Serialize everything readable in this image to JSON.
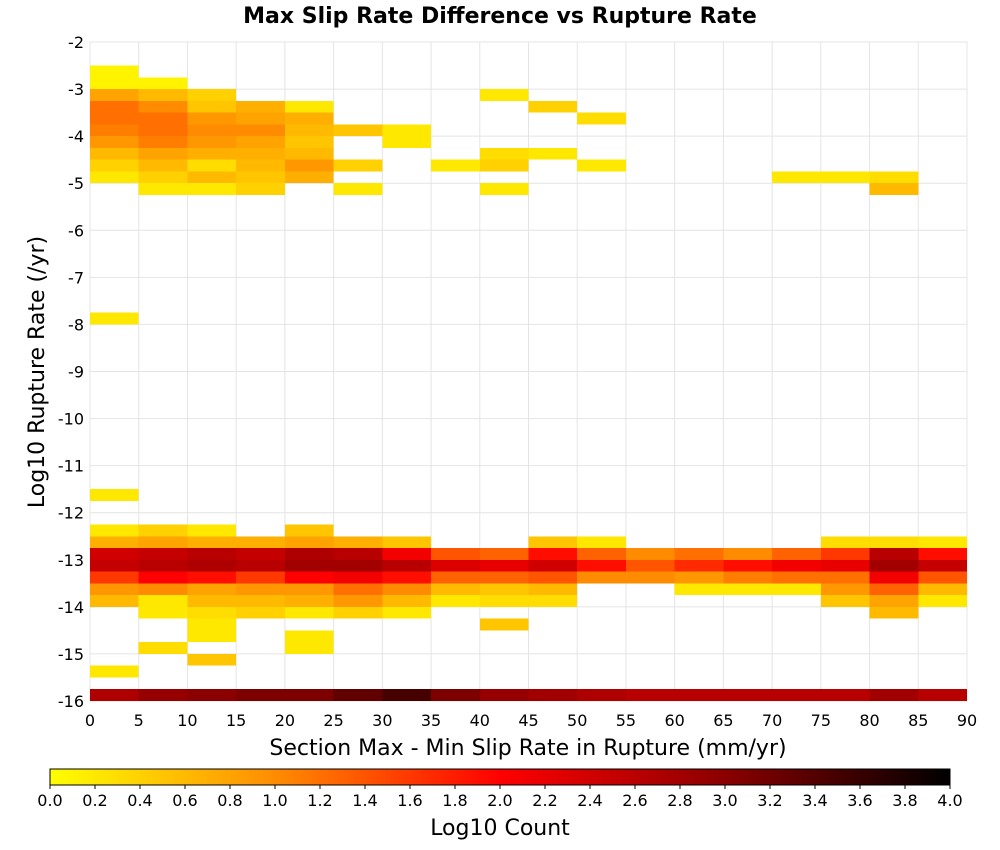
{
  "chart_data": {
    "type": "heatmap",
    "title": "Max Slip Rate Difference vs Rupture Rate",
    "xlabel": "Section Max - Min Slip Rate in Rupture (mm/yr)",
    "ylabel": "Log10 Rupture Rate (/yr)",
    "xlim": [
      0,
      90
    ],
    "ylim": [
      -16,
      -2
    ],
    "x_ticks": [
      "0",
      "5",
      "10",
      "15",
      "20",
      "25",
      "30",
      "35",
      "40",
      "45",
      "50",
      "55",
      "60",
      "65",
      "70",
      "75",
      "80",
      "85",
      "90"
    ],
    "y_ticks": [
      "-2",
      "-3",
      "-4",
      "-5",
      "-6",
      "-7",
      "-8",
      "-9",
      "-10",
      "-11",
      "-12",
      "-13",
      "-14",
      "-15",
      "-16"
    ],
    "grid": true,
    "x_bin_width": 5,
    "y_bin_height": 0.25,
    "colorbar": {
      "label": "Log10 Count",
      "min": 0.0,
      "max": 4.0,
      "ticks": [
        "0.0",
        "0.2",
        "0.4",
        "0.6",
        "0.8",
        "1.0",
        "1.2",
        "1.4",
        "1.6",
        "1.8",
        "2.0",
        "2.2",
        "2.4",
        "2.6",
        "2.8",
        "3.0",
        "3.2",
        "3.4",
        "3.6",
        "3.8",
        "4.0"
      ],
      "colors": [
        "#ffff00",
        "#ff8c00",
        "#ff0000",
        "#8b0000",
        "#000000"
      ]
    },
    "cells": [
      {
        "x": 0,
        "y": -2.625,
        "v": 0.1
      },
      {
        "x": 0,
        "y": -2.875,
        "v": 0.1
      },
      {
        "x": 0,
        "y": -3.125,
        "v": 0.8
      },
      {
        "x": 0,
        "y": -3.375,
        "v": 1.2
      },
      {
        "x": 0,
        "y": -3.625,
        "v": 1.2
      },
      {
        "x": 0,
        "y": -3.875,
        "v": 1.1
      },
      {
        "x": 0,
        "y": -4.125,
        "v": 0.9
      },
      {
        "x": 0,
        "y": -4.375,
        "v": 0.6
      },
      {
        "x": 0,
        "y": -4.625,
        "v": 0.4
      },
      {
        "x": 0,
        "y": -4.875,
        "v": 0.2
      },
      {
        "x": 5,
        "y": -2.875,
        "v": 0.1
      },
      {
        "x": 5,
        "y": -3.125,
        "v": 0.6
      },
      {
        "x": 5,
        "y": -3.375,
        "v": 1.0
      },
      {
        "x": 5,
        "y": -3.625,
        "v": 1.2
      },
      {
        "x": 5,
        "y": -3.875,
        "v": 1.2
      },
      {
        "x": 5,
        "y": -4.125,
        "v": 1.1
      },
      {
        "x": 5,
        "y": -4.375,
        "v": 0.8
      },
      {
        "x": 5,
        "y": -4.625,
        "v": 0.6
      },
      {
        "x": 5,
        "y": -4.875,
        "v": 0.4
      },
      {
        "x": 5,
        "y": -5.125,
        "v": 0.2
      },
      {
        "x": 10,
        "y": -3.125,
        "v": 0.4
      },
      {
        "x": 10,
        "y": -3.375,
        "v": 0.5
      },
      {
        "x": 10,
        "y": -3.625,
        "v": 0.9
      },
      {
        "x": 10,
        "y": -3.875,
        "v": 1.0
      },
      {
        "x": 10,
        "y": -4.125,
        "v": 0.9
      },
      {
        "x": 10,
        "y": -4.375,
        "v": 0.7
      },
      {
        "x": 10,
        "y": -4.625,
        "v": 0.3
      },
      {
        "x": 10,
        "y": -4.875,
        "v": 0.6
      },
      {
        "x": 10,
        "y": -5.125,
        "v": 0.2
      },
      {
        "x": 15,
        "y": -3.375,
        "v": 0.7
      },
      {
        "x": 15,
        "y": -3.625,
        "v": 0.8
      },
      {
        "x": 15,
        "y": -3.875,
        "v": 1.0
      },
      {
        "x": 15,
        "y": -4.125,
        "v": 0.8
      },
      {
        "x": 15,
        "y": -4.375,
        "v": 0.7
      },
      {
        "x": 15,
        "y": -4.625,
        "v": 0.6
      },
      {
        "x": 15,
        "y": -4.875,
        "v": 0.5
      },
      {
        "x": 15,
        "y": -5.125,
        "v": 0.4
      },
      {
        "x": 20,
        "y": -3.375,
        "v": 0.2
      },
      {
        "x": 20,
        "y": -3.625,
        "v": 0.7
      },
      {
        "x": 20,
        "y": -3.875,
        "v": 0.6
      },
      {
        "x": 20,
        "y": -4.125,
        "v": 0.5
      },
      {
        "x": 20,
        "y": -4.375,
        "v": 0.6
      },
      {
        "x": 20,
        "y": -4.625,
        "v": 0.9
      },
      {
        "x": 20,
        "y": -4.875,
        "v": 0.7
      },
      {
        "x": 25,
        "y": -3.875,
        "v": 0.5
      },
      {
        "x": 25,
        "y": -4.625,
        "v": 0.4
      },
      {
        "x": 25,
        "y": -5.125,
        "v": 0.2
      },
      {
        "x": 30,
        "y": -3.875,
        "v": 0.2
      },
      {
        "x": 30,
        "y": -4.125,
        "v": 0.2
      },
      {
        "x": 35,
        "y": -4.625,
        "v": 0.2
      },
      {
        "x": 40,
        "y": -3.125,
        "v": 0.2
      },
      {
        "x": 40,
        "y": -4.375,
        "v": 0.3
      },
      {
        "x": 40,
        "y": -4.625,
        "v": 0.4
      },
      {
        "x": 40,
        "y": -5.125,
        "v": 0.2
      },
      {
        "x": 45,
        "y": -3.375,
        "v": 0.4
      },
      {
        "x": 45,
        "y": -4.375,
        "v": 0.2
      },
      {
        "x": 50,
        "y": -3.625,
        "v": 0.3
      },
      {
        "x": 50,
        "y": -4.625,
        "v": 0.2
      },
      {
        "x": 70,
        "y": -4.875,
        "v": 0.2
      },
      {
        "x": 75,
        "y": -4.875,
        "v": 0.2
      },
      {
        "x": 80,
        "y": -4.875,
        "v": 0.3
      },
      {
        "x": 80,
        "y": -5.125,
        "v": 0.6
      },
      {
        "x": 0,
        "y": -7.875,
        "v": 0.2
      },
      {
        "x": 0,
        "y": -11.625,
        "v": 0.2
      },
      {
        "x": 0,
        "y": -15.375,
        "v": 0.2
      },
      {
        "x": 0,
        "y": -12.375,
        "v": 0.2
      },
      {
        "x": 0,
        "y": -12.625,
        "v": 0.7
      },
      {
        "x": 0,
        "y": -12.875,
        "v": 2.4
      },
      {
        "x": 0,
        "y": -13.125,
        "v": 2.5
      },
      {
        "x": 0,
        "y": -13.375,
        "v": 1.6
      },
      {
        "x": 0,
        "y": -13.625,
        "v": 0.9
      },
      {
        "x": 0,
        "y": -13.875,
        "v": 0.6
      },
      {
        "x": 5,
        "y": -12.375,
        "v": 0.4
      },
      {
        "x": 5,
        "y": -12.625,
        "v": 0.8
      },
      {
        "x": 5,
        "y": -12.875,
        "v": 2.5
      },
      {
        "x": 5,
        "y": -13.125,
        "v": 2.6
      },
      {
        "x": 5,
        "y": -13.375,
        "v": 2.0
      },
      {
        "x": 5,
        "y": -13.625,
        "v": 1.0
      },
      {
        "x": 5,
        "y": -13.875,
        "v": 0.2
      },
      {
        "x": 5,
        "y": -14.125,
        "v": 0.2
      },
      {
        "x": 5,
        "y": -14.875,
        "v": 0.3
      },
      {
        "x": 10,
        "y": -12.375,
        "v": 0.2
      },
      {
        "x": 10,
        "y": -12.625,
        "v": 0.7
      },
      {
        "x": 10,
        "y": -12.875,
        "v": 2.6
      },
      {
        "x": 10,
        "y": -13.125,
        "v": 2.7
      },
      {
        "x": 10,
        "y": -13.375,
        "v": 1.9
      },
      {
        "x": 10,
        "y": -13.625,
        "v": 0.8
      },
      {
        "x": 10,
        "y": -13.875,
        "v": 0.6
      },
      {
        "x": 10,
        "y": -14.125,
        "v": 0.3
      },
      {
        "x": 10,
        "y": -14.375,
        "v": 0.2
      },
      {
        "x": 10,
        "y": -14.625,
        "v": 0.2
      },
      {
        "x": 10,
        "y": -15.125,
        "v": 0.5
      },
      {
        "x": 15,
        "y": -12.625,
        "v": 0.7
      },
      {
        "x": 15,
        "y": -12.875,
        "v": 2.5
      },
      {
        "x": 15,
        "y": -13.125,
        "v": 2.6
      },
      {
        "x": 15,
        "y": -13.375,
        "v": 1.6
      },
      {
        "x": 15,
        "y": -13.625,
        "v": 0.9
      },
      {
        "x": 15,
        "y": -13.875,
        "v": 0.6
      },
      {
        "x": 15,
        "y": -14.125,
        "v": 0.4
      },
      {
        "x": 20,
        "y": -12.375,
        "v": 0.5
      },
      {
        "x": 20,
        "y": -12.625,
        "v": 0.8
      },
      {
        "x": 20,
        "y": -12.875,
        "v": 2.7
      },
      {
        "x": 20,
        "y": -13.125,
        "v": 2.8
      },
      {
        "x": 20,
        "y": -13.375,
        "v": 2.0
      },
      {
        "x": 20,
        "y": -13.625,
        "v": 0.9
      },
      {
        "x": 20,
        "y": -13.875,
        "v": 0.7
      },
      {
        "x": 20,
        "y": -14.125,
        "v": 0.2
      },
      {
        "x": 20,
        "y": -14.625,
        "v": 0.2
      },
      {
        "x": 20,
        "y": -14.875,
        "v": 0.2
      },
      {
        "x": 25,
        "y": -12.625,
        "v": 0.7
      },
      {
        "x": 25,
        "y": -12.875,
        "v": 2.6
      },
      {
        "x": 25,
        "y": -13.125,
        "v": 2.8
      },
      {
        "x": 25,
        "y": -13.375,
        "v": 2.1
      },
      {
        "x": 25,
        "y": -13.625,
        "v": 1.2
      },
      {
        "x": 25,
        "y": -13.875,
        "v": 0.9
      },
      {
        "x": 25,
        "y": -14.125,
        "v": 0.4
      },
      {
        "x": 30,
        "y": -12.625,
        "v": 0.5
      },
      {
        "x": 30,
        "y": -12.875,
        "v": 2.1
      },
      {
        "x": 30,
        "y": -13.125,
        "v": 2.6
      },
      {
        "x": 30,
        "y": -13.375,
        "v": 1.9
      },
      {
        "x": 30,
        "y": -13.625,
        "v": 1.0
      },
      {
        "x": 30,
        "y": -13.875,
        "v": 0.6
      },
      {
        "x": 30,
        "y": -14.125,
        "v": 0.2
      },
      {
        "x": 35,
        "y": -12.875,
        "v": 1.4
      },
      {
        "x": 35,
        "y": -13.125,
        "v": 2.3
      },
      {
        "x": 35,
        "y": -13.375,
        "v": 1.3
      },
      {
        "x": 35,
        "y": -13.625,
        "v": 0.6
      },
      {
        "x": 35,
        "y": -13.875,
        "v": 0.2
      },
      {
        "x": 40,
        "y": -12.875,
        "v": 1.3
      },
      {
        "x": 40,
        "y": -13.125,
        "v": 2.2
      },
      {
        "x": 40,
        "y": -13.375,
        "v": 1.3
      },
      {
        "x": 40,
        "y": -13.625,
        "v": 0.5
      },
      {
        "x": 40,
        "y": -13.875,
        "v": 0.3
      },
      {
        "x": 40,
        "y": -14.375,
        "v": 0.5
      },
      {
        "x": 45,
        "y": -12.625,
        "v": 0.5
      },
      {
        "x": 45,
        "y": -12.875,
        "v": 1.9
      },
      {
        "x": 45,
        "y": -13.125,
        "v": 2.4
      },
      {
        "x": 45,
        "y": -13.375,
        "v": 1.4
      },
      {
        "x": 45,
        "y": -13.625,
        "v": 0.6
      },
      {
        "x": 45,
        "y": -13.875,
        "v": 0.3
      },
      {
        "x": 50,
        "y": -12.625,
        "v": 0.2
      },
      {
        "x": 50,
        "y": -12.875,
        "v": 1.3
      },
      {
        "x": 50,
        "y": -13.125,
        "v": 1.9
      },
      {
        "x": 50,
        "y": -13.375,
        "v": 1.0
      },
      {
        "x": 55,
        "y": -12.875,
        "v": 1.0
      },
      {
        "x": 55,
        "y": -13.125,
        "v": 1.4
      },
      {
        "x": 55,
        "y": -13.375,
        "v": 1.0
      },
      {
        "x": 60,
        "y": -12.875,
        "v": 1.2
      },
      {
        "x": 60,
        "y": -13.125,
        "v": 1.7
      },
      {
        "x": 60,
        "y": -13.375,
        "v": 0.9
      },
      {
        "x": 60,
        "y": -13.625,
        "v": 0.2
      },
      {
        "x": 65,
        "y": -12.875,
        "v": 1.0
      },
      {
        "x": 65,
        "y": -13.125,
        "v": 1.9
      },
      {
        "x": 65,
        "y": -13.375,
        "v": 1.1
      },
      {
        "x": 65,
        "y": -13.625,
        "v": 0.2
      },
      {
        "x": 70,
        "y": -12.875,
        "v": 1.3
      },
      {
        "x": 70,
        "y": -13.125,
        "v": 2.1
      },
      {
        "x": 70,
        "y": -13.375,
        "v": 1.2
      },
      {
        "x": 70,
        "y": -13.625,
        "v": 0.2
      },
      {
        "x": 75,
        "y": -12.625,
        "v": 0.3
      },
      {
        "x": 75,
        "y": -12.875,
        "v": 1.6
      },
      {
        "x": 75,
        "y": -13.125,
        "v": 2.2
      },
      {
        "x": 75,
        "y": -13.375,
        "v": 1.2
      },
      {
        "x": 75,
        "y": -13.625,
        "v": 0.9
      },
      {
        "x": 75,
        "y": -13.875,
        "v": 0.5
      },
      {
        "x": 80,
        "y": -12.625,
        "v": 0.3
      },
      {
        "x": 80,
        "y": -12.875,
        "v": 2.6
      },
      {
        "x": 80,
        "y": -13.125,
        "v": 2.8
      },
      {
        "x": 80,
        "y": -13.375,
        "v": 2.1
      },
      {
        "x": 80,
        "y": -13.625,
        "v": 1.3
      },
      {
        "x": 80,
        "y": -13.875,
        "v": 0.8
      },
      {
        "x": 80,
        "y": -14.125,
        "v": 0.6
      },
      {
        "x": 85,
        "y": -12.625,
        "v": 0.2
      },
      {
        "x": 85,
        "y": -12.875,
        "v": 1.9
      },
      {
        "x": 85,
        "y": -13.125,
        "v": 2.5
      },
      {
        "x": 85,
        "y": -13.375,
        "v": 1.4
      },
      {
        "x": 85,
        "y": -13.625,
        "v": 0.6
      },
      {
        "x": 85,
        "y": -13.875,
        "v": 0.2
      },
      {
        "x": 0,
        "y": -15.875,
        "v": 2.7
      },
      {
        "x": 5,
        "y": -15.875,
        "v": 2.9
      },
      {
        "x": 10,
        "y": -15.875,
        "v": 3.0
      },
      {
        "x": 15,
        "y": -15.875,
        "v": 3.1
      },
      {
        "x": 20,
        "y": -15.875,
        "v": 3.1
      },
      {
        "x": 25,
        "y": -15.875,
        "v": 3.3
      },
      {
        "x": 30,
        "y": -15.875,
        "v": 3.5
      },
      {
        "x": 35,
        "y": -15.875,
        "v": 3.1
      },
      {
        "x": 40,
        "y": -15.875,
        "v": 2.9
      },
      {
        "x": 45,
        "y": -15.875,
        "v": 2.8
      },
      {
        "x": 50,
        "y": -15.875,
        "v": 2.7
      },
      {
        "x": 55,
        "y": -15.875,
        "v": 2.6
      },
      {
        "x": 60,
        "y": -15.875,
        "v": 2.6
      },
      {
        "x": 65,
        "y": -15.875,
        "v": 2.6
      },
      {
        "x": 70,
        "y": -15.875,
        "v": 2.6
      },
      {
        "x": 75,
        "y": -15.875,
        "v": 2.6
      },
      {
        "x": 80,
        "y": -15.875,
        "v": 2.8
      },
      {
        "x": 85,
        "y": -15.875,
        "v": 2.6
      }
    ]
  }
}
